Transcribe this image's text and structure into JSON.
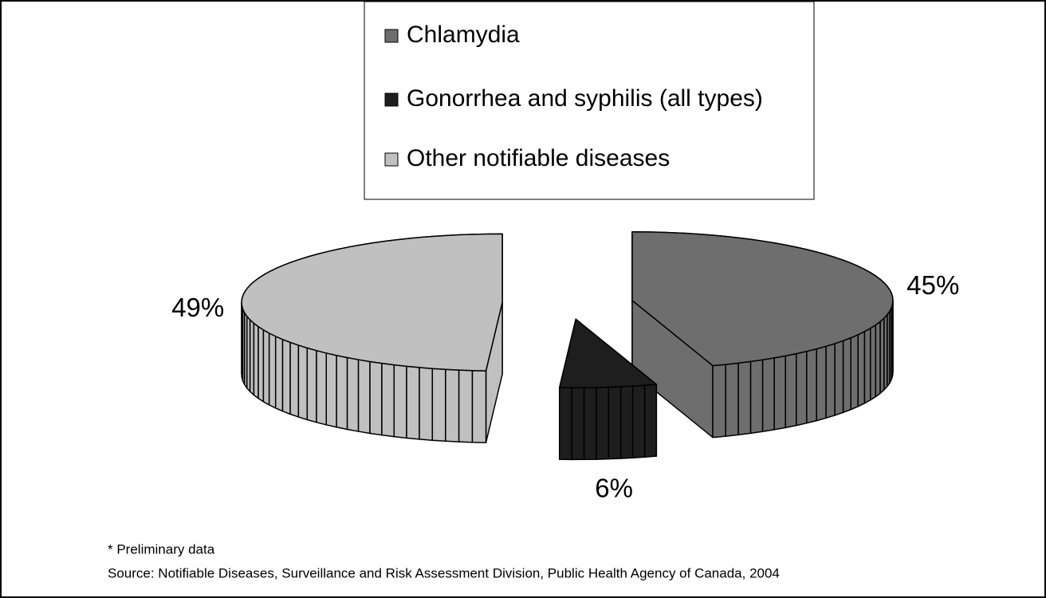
{
  "chart_data": {
    "type": "pie",
    "style": "3d-exploded",
    "categories": [
      "Chlamydia",
      "Gonorrhea and syphilis (all types)",
      "Other notifiable diseases"
    ],
    "values": [
      45,
      6,
      49
    ],
    "value_labels": [
      "45%",
      "6%",
      "49%"
    ],
    "colors": [
      "#6e6e6e",
      "#1e1e1e",
      "#c0c0c0"
    ],
    "legend": "top",
    "notes": [
      "* Preliminary data",
      "Source: Notifiable Diseases, Surveillance and Risk Assessment Division, Public Health Agency of Canada, 2004"
    ]
  }
}
